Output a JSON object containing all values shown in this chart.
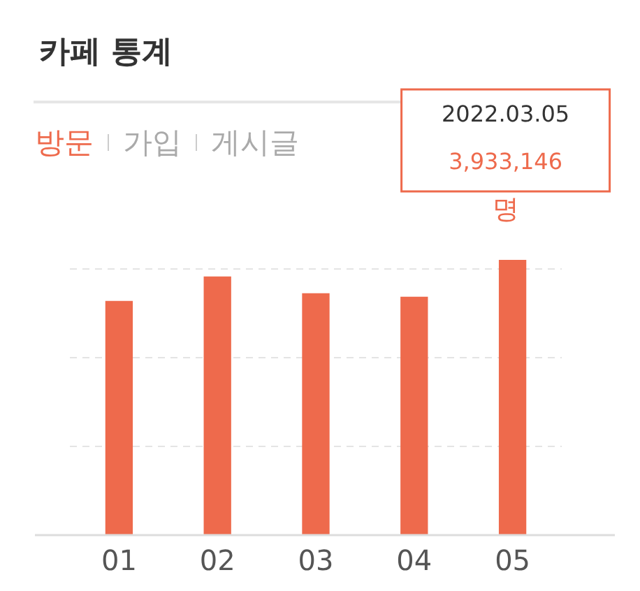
{
  "chart_data": {
    "type": "bar",
    "title": "카페 통계",
    "categories": [
      "01",
      "02",
      "03",
      "04",
      "05"
    ],
    "values": [
      3340000,
      3690000,
      3450000,
      3400000,
      3933146
    ],
    "value_labels": [
      null,
      null,
      null,
      null,
      "3,933,146명"
    ],
    "color": "#ee6a4c",
    "grid": "y",
    "annotations": [
      "방문",
      "가입",
      "게시글",
      "2022.03.05"
    ]
  }
}
